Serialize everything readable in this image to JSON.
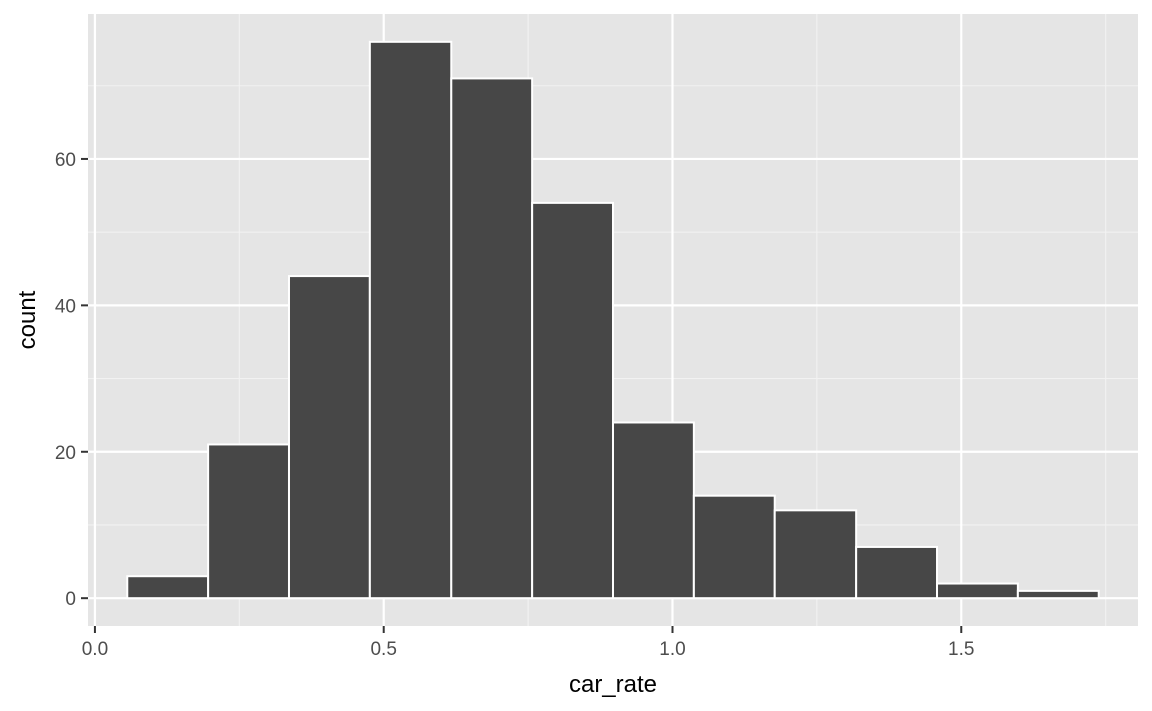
{
  "chart_data": {
    "type": "bar",
    "subtype": "histogram",
    "xlabel": "car_rate",
    "ylabel": "count",
    "bins": [
      {
        "x0": 0.056,
        "x1": 0.196,
        "count": 3
      },
      {
        "x0": 0.196,
        "x1": 0.336,
        "count": 21
      },
      {
        "x0": 0.336,
        "x1": 0.476,
        "count": 44
      },
      {
        "x0": 0.476,
        "x1": 0.617,
        "count": 76
      },
      {
        "x0": 0.617,
        "x1": 0.757,
        "count": 71
      },
      {
        "x0": 0.757,
        "x1": 0.897,
        "count": 54
      },
      {
        "x0": 0.897,
        "x1": 1.037,
        "count": 24
      },
      {
        "x0": 1.037,
        "x1": 1.177,
        "count": 14
      },
      {
        "x0": 1.177,
        "x1": 1.318,
        "count": 12
      },
      {
        "x0": 1.318,
        "x1": 1.458,
        "count": 7
      },
      {
        "x0": 1.458,
        "x1": 1.598,
        "count": 2
      },
      {
        "x0": 1.598,
        "x1": 1.738,
        "count": 1
      }
    ],
    "xticks": [
      0.0,
      0.5,
      1.0,
      1.5
    ],
    "xtick_labels": [
      "0.0",
      "0.5",
      "1.0",
      "1.5"
    ],
    "yticks": [
      0,
      20,
      40,
      60
    ],
    "ytick_labels": [
      "0",
      "20",
      "40",
      "60"
    ],
    "xlim": [
      -0.012,
      1.806
    ],
    "ylim": [
      -3.8,
      79.8
    ],
    "grid": true,
    "colors": {
      "panel_background": "#e5e5e5",
      "grid_major": "#ffffff",
      "grid_minor": "#f2f2f2",
      "bar_fill": "#474747",
      "bar_outline": "#ffffff",
      "tick_mark": "#333333"
    }
  }
}
